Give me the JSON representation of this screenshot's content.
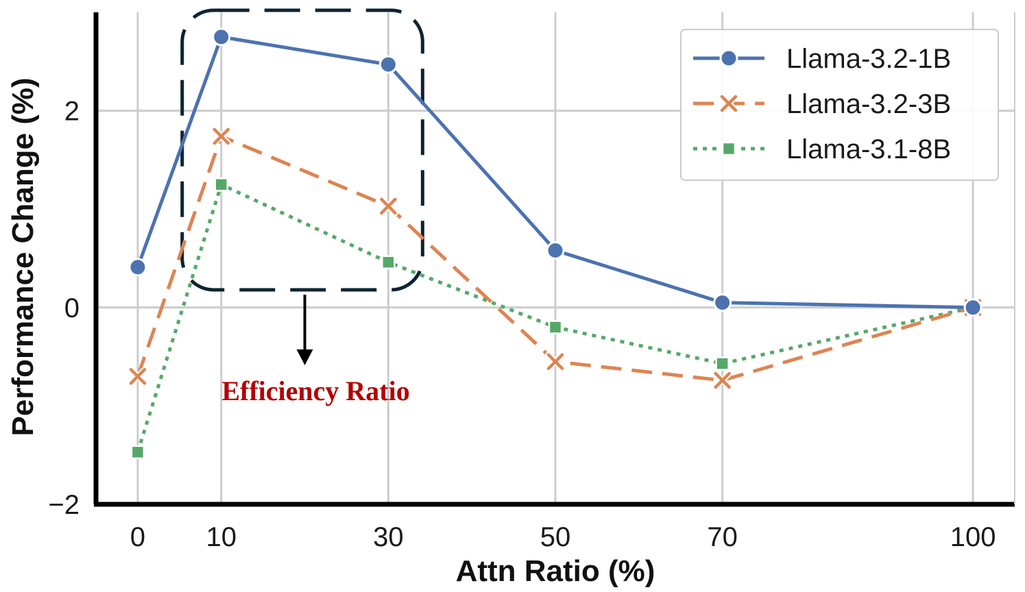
{
  "chart_data": {
    "type": "line",
    "title": "",
    "xlabel": "Attn Ratio (%)",
    "ylabel": "Performance Change (%)",
    "x": [
      0,
      10,
      30,
      50,
      70,
      100
    ],
    "x_tick_labels": [
      "0",
      "10",
      "30",
      "50",
      "70",
      "100"
    ],
    "y_ticks": [
      -2,
      0,
      2
    ],
    "y_tick_labels": [
      "−2",
      "0",
      "2"
    ],
    "xlim": [
      -5,
      105
    ],
    "ylim": [
      -2,
      3.0
    ],
    "grid": true,
    "legend_position": "top-right",
    "series": [
      {
        "name": "Llama-3.2-1B",
        "color": "#4c72b0",
        "marker": "circle",
        "linestyle": "solid",
        "values": [
          0.41,
          2.75,
          2.47,
          0.58,
          0.05,
          0.0
        ]
      },
      {
        "name": "Llama-3.2-3B",
        "color": "#dd8452",
        "marker": "x",
        "linestyle": "dashed",
        "values": [
          -0.7,
          1.74,
          1.03,
          -0.55,
          -0.74,
          0.0
        ]
      },
      {
        "name": "Llama-3.1-8B",
        "color": "#55a868",
        "marker": "square",
        "linestyle": "dotted",
        "values": [
          -1.47,
          1.25,
          0.46,
          -0.2,
          -0.57,
          0.0
        ]
      }
    ],
    "annotation": {
      "text": "Efficiency Ratio",
      "color": "#b30000",
      "box_color": "#0e2433",
      "box_x_range": [
        10,
        30
      ],
      "arrow_color": "#000000"
    }
  }
}
